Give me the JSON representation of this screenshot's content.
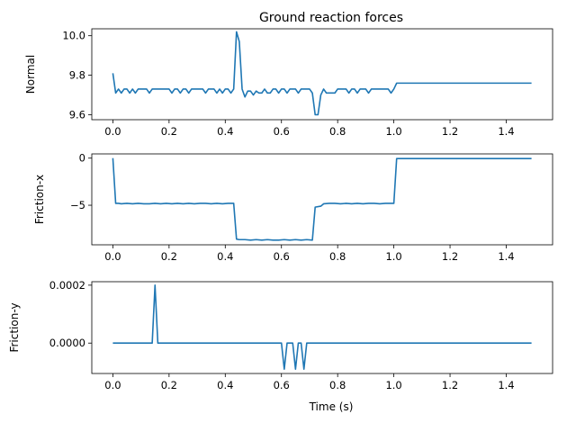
{
  "figure": {
    "title": "Ground reaction forces",
    "xlabel": "Time (s)"
  },
  "chart_data": [
    {
      "type": "line",
      "title": "Ground reaction forces",
      "ylabel": "Normal",
      "xlabel": "",
      "xlim": [
        -0.075,
        1.565
      ],
      "ylim": [
        9.575,
        10.035
      ],
      "xticks": [
        0.0,
        0.2,
        0.4,
        0.6,
        0.8,
        1.0,
        1.2,
        1.4
      ],
      "xtick_labels": [
        "0.0",
        "0.2",
        "0.4",
        "0.6",
        "0.8",
        "1.0",
        "1.2",
        "1.4"
      ],
      "yticks": [
        9.6,
        9.8,
        10.0
      ],
      "ytick_labels": [
        "9.6",
        "9.8",
        "10.0"
      ],
      "grid": false,
      "color": "#1f77b4",
      "x": [
        0.0,
        0.01,
        0.02,
        0.03,
        0.04,
        0.05,
        0.06,
        0.07,
        0.08,
        0.09,
        0.1,
        0.11,
        0.12,
        0.13,
        0.14,
        0.15,
        0.16,
        0.17,
        0.18,
        0.19,
        0.2,
        0.21,
        0.22,
        0.23,
        0.24,
        0.25,
        0.26,
        0.27,
        0.28,
        0.29,
        0.3,
        0.31,
        0.32,
        0.33,
        0.34,
        0.35,
        0.36,
        0.37,
        0.38,
        0.39,
        0.4,
        0.41,
        0.42,
        0.43,
        0.44,
        0.45,
        0.46,
        0.47,
        0.48,
        0.49,
        0.5,
        0.51,
        0.52,
        0.53,
        0.54,
        0.55,
        0.56,
        0.57,
        0.58,
        0.59,
        0.6,
        0.61,
        0.62,
        0.63,
        0.64,
        0.65,
        0.66,
        0.67,
        0.68,
        0.69,
        0.7,
        0.71,
        0.72,
        0.73,
        0.74,
        0.75,
        0.76,
        0.77,
        0.78,
        0.79,
        0.8,
        0.81,
        0.82,
        0.83,
        0.84,
        0.85,
        0.86,
        0.87,
        0.88,
        0.89,
        0.9,
        0.91,
        0.92,
        0.93,
        0.94,
        0.95,
        0.96,
        0.97,
        0.98,
        0.99,
        1.0,
        1.01,
        1.49
      ],
      "y": [
        9.81,
        9.71,
        9.73,
        9.71,
        9.73,
        9.73,
        9.71,
        9.73,
        9.71,
        9.73,
        9.73,
        9.73,
        9.73,
        9.71,
        9.73,
        9.73,
        9.73,
        9.73,
        9.73,
        9.73,
        9.73,
        9.71,
        9.73,
        9.73,
        9.71,
        9.73,
        9.73,
        9.71,
        9.73,
        9.73,
        9.73,
        9.73,
        9.73,
        9.71,
        9.73,
        9.73,
        9.73,
        9.71,
        9.73,
        9.71,
        9.73,
        9.73,
        9.71,
        9.73,
        10.02,
        9.97,
        9.73,
        9.69,
        9.72,
        9.72,
        9.7,
        9.72,
        9.71,
        9.71,
        9.73,
        9.71,
        9.71,
        9.73,
        9.73,
        9.71,
        9.73,
        9.73,
        9.71,
        9.73,
        9.73,
        9.73,
        9.71,
        9.73,
        9.73,
        9.73,
        9.73,
        9.71,
        9.6,
        9.6,
        9.7,
        9.73,
        9.71,
        9.71,
        9.71,
        9.71,
        9.73,
        9.73,
        9.73,
        9.73,
        9.71,
        9.73,
        9.73,
        9.71,
        9.73,
        9.73,
        9.73,
        9.71,
        9.73,
        9.73,
        9.73,
        9.73,
        9.73,
        9.73,
        9.73,
        9.71,
        9.73,
        9.76,
        9.76
      ]
    },
    {
      "type": "line",
      "title": "",
      "ylabel": "Friction-x",
      "xlabel": "",
      "xlim": [
        -0.075,
        1.565
      ],
      "ylim": [
        -9.2,
        0.45
      ],
      "xticks": [
        0.0,
        0.2,
        0.4,
        0.6,
        0.8,
        1.0,
        1.2,
        1.4
      ],
      "xtick_labels": [
        "0.0",
        "0.2",
        "0.4",
        "0.6",
        "0.8",
        "1.0",
        "1.2",
        "1.4"
      ],
      "yticks": [
        -5,
        0
      ],
      "ytick_labels": [
        "−5",
        "0"
      ],
      "grid": false,
      "color": "#1f77b4",
      "x": [
        0.0,
        0.01,
        0.02,
        0.03,
        0.05,
        0.07,
        0.09,
        0.11,
        0.13,
        0.15,
        0.17,
        0.19,
        0.21,
        0.23,
        0.25,
        0.27,
        0.29,
        0.31,
        0.33,
        0.35,
        0.37,
        0.39,
        0.41,
        0.43,
        0.44,
        0.45,
        0.47,
        0.49,
        0.51,
        0.53,
        0.55,
        0.57,
        0.59,
        0.61,
        0.63,
        0.65,
        0.67,
        0.69,
        0.71,
        0.72,
        0.74,
        0.75,
        0.77,
        0.79,
        0.81,
        0.83,
        0.85,
        0.87,
        0.89,
        0.91,
        0.93,
        0.95,
        0.97,
        0.99,
        1.0,
        1.01,
        1.49
      ],
      "y": [
        0.0,
        -4.8,
        -4.8,
        -4.85,
        -4.8,
        -4.85,
        -4.8,
        -4.85,
        -4.85,
        -4.8,
        -4.85,
        -4.8,
        -4.85,
        -4.8,
        -4.85,
        -4.8,
        -4.85,
        -4.8,
        -4.8,
        -4.85,
        -4.8,
        -4.85,
        -4.8,
        -4.8,
        -8.6,
        -8.65,
        -8.65,
        -8.7,
        -8.65,
        -8.7,
        -8.65,
        -8.7,
        -8.7,
        -8.65,
        -8.7,
        -8.65,
        -8.7,
        -8.65,
        -8.7,
        -5.2,
        -5.1,
        -4.85,
        -4.8,
        -4.8,
        -4.85,
        -4.8,
        -4.85,
        -4.8,
        -4.85,
        -4.8,
        -4.8,
        -4.85,
        -4.8,
        -4.8,
        -4.8,
        -0.05,
        -0.05
      ]
    },
    {
      "type": "line",
      "title": "",
      "ylabel": "Friction-y",
      "xlabel": "Time (s)",
      "xlim": [
        -0.075,
        1.565
      ],
      "ylim": [
        -0.000105,
        0.000212
      ],
      "xticks": [
        0.0,
        0.2,
        0.4,
        0.6,
        0.8,
        1.0,
        1.2,
        1.4
      ],
      "xtick_labels": [
        "0.0",
        "0.2",
        "0.4",
        "0.6",
        "0.8",
        "1.0",
        "1.2",
        "1.4"
      ],
      "yticks": [
        0.0,
        0.0002
      ],
      "ytick_labels": [
        "0.0000",
        "0.0002"
      ],
      "grid": false,
      "color": "#1f77b4",
      "x": [
        0.0,
        0.14,
        0.15,
        0.16,
        0.6,
        0.61,
        0.62,
        0.64,
        0.65,
        0.66,
        0.67,
        0.68,
        0.69,
        0.7,
        1.49
      ],
      "y": [
        0.0,
        0.0,
        0.0002,
        0.0,
        0.0,
        -9e-05,
        0.0,
        0.0,
        -9e-05,
        0.0,
        0.0,
        -9e-05,
        0.0,
        0.0,
        0.0
      ]
    }
  ]
}
